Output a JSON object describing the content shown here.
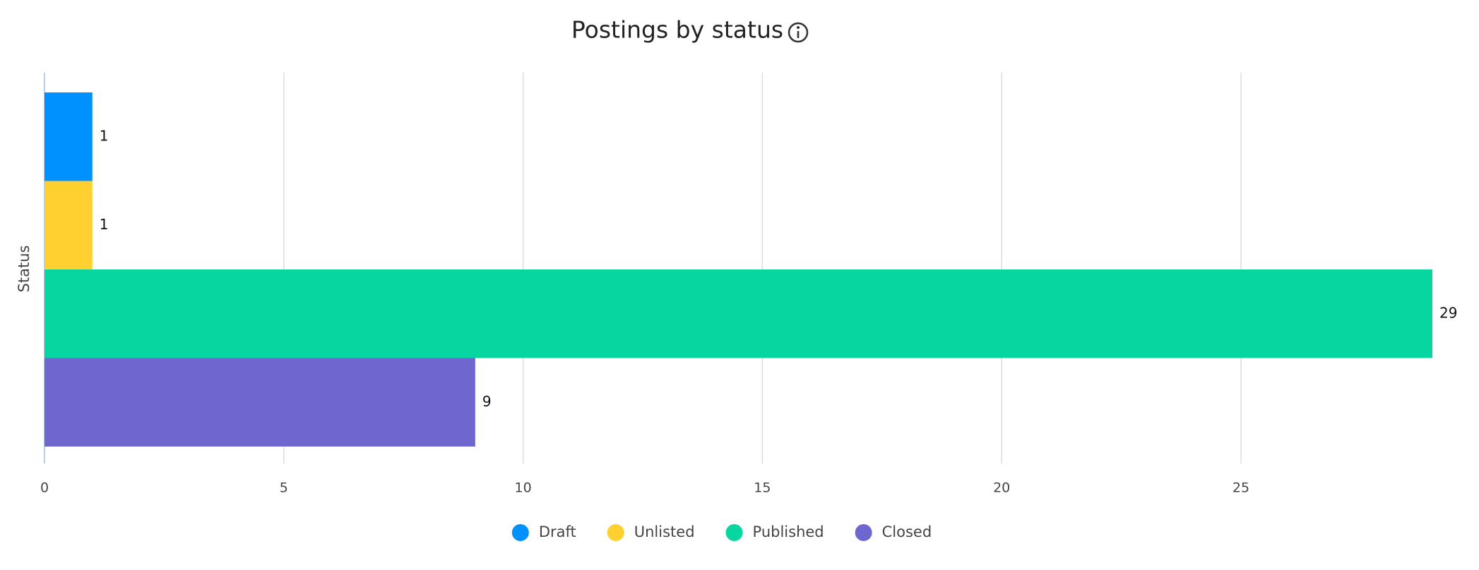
{
  "chart_data": {
    "type": "bar",
    "orientation": "horizontal",
    "title": "Postings by status",
    "y_label": "Status",
    "categories": [
      null
    ],
    "series": [
      {
        "name": "Draft",
        "color": "#0091ff",
        "values": [
          1
        ]
      },
      {
        "name": "Unlisted",
        "color": "#ffd02f",
        "values": [
          1
        ]
      },
      {
        "name": "Published",
        "color": "#08d6a0",
        "values": [
          29
        ]
      },
      {
        "name": "Closed",
        "color": "#6e67cf",
        "values": [
          9
        ]
      }
    ],
    "xlim": [
      0,
      29
    ],
    "xticks": [
      0,
      5,
      10,
      15,
      20,
      25
    ],
    "grid": true,
    "legend": "bottom"
  }
}
